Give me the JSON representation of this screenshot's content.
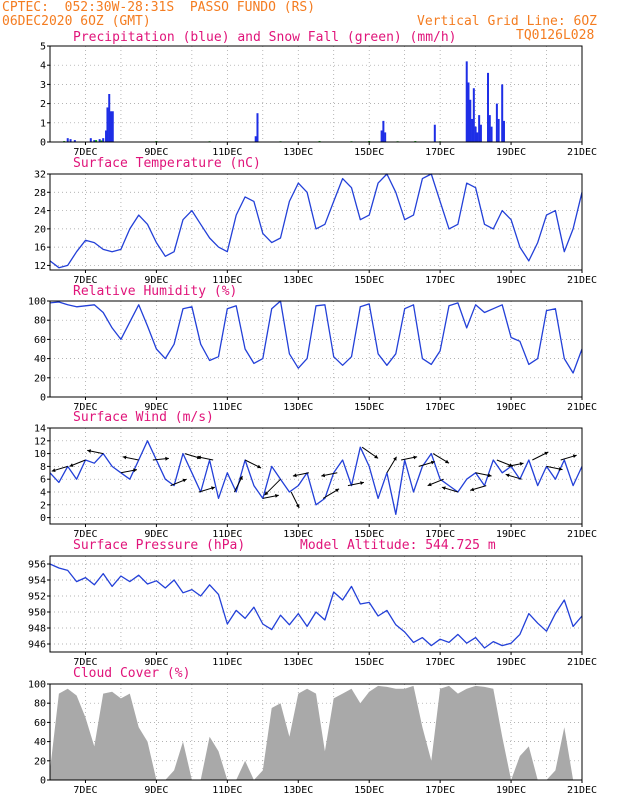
{
  "header": {
    "line1": "CPTEC:  052:30W-28:31S  PASSO FUNDO (RS)",
    "line2_left": "06DEC2020 6OZ (GMT)",
    "line2_right": "Vertical Grid Line: 6OZ",
    "line3_right": "TQ0126L028"
  },
  "colors": {
    "header": "#f47c20",
    "panel_title": "#e0147a",
    "precip": "#1e2ee6",
    "snow": "#10a810",
    "line": "#2340d8",
    "cloud": "#a9a9a9",
    "wind_arrow": "#000000"
  },
  "chart_data": [
    {
      "id": "precip",
      "type": "bar",
      "title": "Precipitation (blue) and Snow Fall (green) (mm/h)",
      "x_tick_labels": [
        "7DEC",
        "9DEC",
        "11DEC",
        "13DEC",
        "15DEC",
        "17DEC",
        "19DEC",
        "21DEC"
      ],
      "ylim": [
        0,
        5
      ],
      "yticks": [
        0,
        1,
        2,
        3,
        4,
        5
      ],
      "grid": true,
      "series": [
        {
          "color": "precip",
          "points": [
            [
              6.5,
              0.2
            ],
            [
              6.58,
              0.15
            ],
            [
              6.7,
              0.1
            ],
            [
              7.15,
              0.2
            ],
            [
              7.25,
              0.1
            ],
            [
              7.4,
              0.15
            ],
            [
              7.5,
              0.2
            ],
            [
              7.58,
              0.6
            ],
            [
              7.62,
              1.8
            ],
            [
              7.67,
              2.5
            ],
            [
              7.72,
              1.6
            ],
            [
              7.77,
              1.6
            ],
            [
              11.8,
              0.3
            ],
            [
              11.85,
              1.5
            ],
            [
              15.35,
              0.6
            ],
            [
              15.4,
              1.1
            ],
            [
              15.45,
              0.5
            ],
            [
              16.85,
              0.9
            ],
            [
              17.75,
              4.2
            ],
            [
              17.8,
              3.1
            ],
            [
              17.85,
              2.2
            ],
            [
              17.9,
              1.2
            ],
            [
              17.95,
              2.8
            ],
            [
              18.0,
              0.8
            ],
            [
              18.05,
              0.5
            ],
            [
              18.1,
              1.4
            ],
            [
              18.15,
              0.9
            ],
            [
              18.35,
              3.6
            ],
            [
              18.4,
              1.4
            ],
            [
              18.45,
              0.8
            ],
            [
              18.6,
              2.0
            ],
            [
              18.65,
              1.2
            ],
            [
              18.75,
              3.0
            ],
            [
              18.8,
              1.1
            ]
          ]
        },
        {
          "color": "snow",
          "points": [
            [
              6.4,
              0.05
            ],
            [
              7.3,
              0.1
            ],
            [
              7.45,
              0.08
            ],
            [
              9.0,
              0.05
            ],
            [
              10.5,
              0.04
            ],
            [
              12.5,
              0.04
            ],
            [
              13.6,
              0.05
            ],
            [
              14.5,
              0.04
            ],
            [
              15.0,
              0.05
            ],
            [
              15.8,
              0.04
            ],
            [
              16.3,
              0.05
            ],
            [
              17.0,
              0.04
            ]
          ]
        }
      ]
    },
    {
      "id": "temp",
      "type": "line",
      "title": "Surface Temperature (nC)",
      "x_tick_labels": [
        "7DEC",
        "9DEC",
        "11DEC",
        "13DEC",
        "15DEC",
        "17DEC",
        "19DEC",
        "21DEC"
      ],
      "ylim": [
        11,
        32
      ],
      "yticks": [
        12,
        16,
        20,
        24,
        28,
        32
      ],
      "grid": true,
      "x": [
        6.0,
        6.25,
        6.5,
        6.75,
        7.0,
        7.25,
        7.5,
        7.75,
        8.0,
        8.25,
        8.5,
        8.75,
        9.0,
        9.25,
        9.5,
        9.75,
        10.0,
        10.25,
        10.5,
        10.75,
        11.0,
        11.25,
        11.5,
        11.75,
        12.0,
        12.25,
        12.5,
        12.75,
        13.0,
        13.25,
        13.5,
        13.75,
        14.0,
        14.25,
        14.5,
        14.75,
        15.0,
        15.25,
        15.5,
        15.75,
        16.0,
        16.25,
        16.5,
        16.75,
        17.0,
        17.25,
        17.5,
        17.75,
        18.0,
        18.25,
        18.5,
        18.75,
        19.0,
        19.25,
        19.5,
        19.75,
        20.0,
        20.25,
        20.5,
        20.75,
        21.0
      ],
      "values": [
        13,
        11.5,
        12,
        15,
        17.5,
        17,
        15.5,
        15,
        15.5,
        20,
        23,
        21,
        17,
        14,
        15,
        22,
        24,
        21,
        18,
        16,
        15,
        23,
        27,
        26,
        19,
        17,
        18,
        26,
        30,
        28,
        20,
        21,
        26,
        31,
        29,
        22,
        23,
        30,
        32,
        28,
        22,
        23,
        31,
        32,
        26,
        20,
        21,
        30,
        29,
        21,
        20,
        24,
        22,
        16,
        13,
        17,
        23,
        24,
        15,
        20,
        28
      ]
    },
    {
      "id": "rh",
      "type": "line",
      "title": "Relative Humidity (%)",
      "x_tick_labels": [
        "7DEC",
        "9DEC",
        "11DEC",
        "13DEC",
        "15DEC",
        "17DEC",
        "19DEC",
        "21DEC"
      ],
      "ylim": [
        0,
        100
      ],
      "yticks": [
        0,
        20,
        40,
        60,
        80,
        100
      ],
      "grid": true,
      "x": [
        6.0,
        6.25,
        6.5,
        6.75,
        7.0,
        7.25,
        7.5,
        7.75,
        8.0,
        8.25,
        8.5,
        8.75,
        9.0,
        9.25,
        9.5,
        9.75,
        10.0,
        10.25,
        10.5,
        10.75,
        11.0,
        11.25,
        11.5,
        11.75,
        12.0,
        12.25,
        12.5,
        12.75,
        13.0,
        13.25,
        13.5,
        13.75,
        14.0,
        14.25,
        14.5,
        14.75,
        15.0,
        15.25,
        15.5,
        15.75,
        16.0,
        16.25,
        16.5,
        16.75,
        17.0,
        17.25,
        17.5,
        17.75,
        18.0,
        18.25,
        18.5,
        18.75,
        19.0,
        19.25,
        19.5,
        19.75,
        20.0,
        20.25,
        20.5,
        20.75,
        21.0
      ],
      "values": [
        98,
        99,
        96,
        94,
        95,
        96,
        88,
        72,
        60,
        78,
        96,
        74,
        50,
        40,
        55,
        92,
        94,
        55,
        38,
        42,
        92,
        95,
        50,
        35,
        40,
        92,
        100,
        45,
        30,
        40,
        95,
        96,
        42,
        33,
        42,
        94,
        97,
        45,
        33,
        45,
        92,
        96,
        40,
        34,
        48,
        95,
        98,
        72,
        96,
        88,
        92,
        96,
        62,
        58,
        34,
        40,
        90,
        92,
        40,
        25,
        50
      ]
    },
    {
      "id": "wind",
      "type": "line",
      "title": "Surface Wind (m/s)",
      "x_tick_labels": [
        "7DEC",
        "9DEC",
        "11DEC",
        "13DEC",
        "15DEC",
        "17DEC",
        "19DEC",
        "21DEC"
      ],
      "ylim": [
        -1,
        14
      ],
      "yticks": [
        0,
        2,
        4,
        6,
        8,
        10,
        12,
        14
      ],
      "grid": true,
      "x": [
        6.0,
        6.25,
        6.5,
        6.75,
        7.0,
        7.25,
        7.5,
        7.75,
        8.0,
        8.25,
        8.5,
        8.75,
        9.0,
        9.25,
        9.5,
        9.75,
        10.0,
        10.25,
        10.5,
        10.75,
        11.0,
        11.25,
        11.5,
        11.75,
        12.0,
        12.25,
        12.5,
        12.75,
        13.0,
        13.25,
        13.5,
        13.75,
        14.0,
        14.25,
        14.5,
        14.75,
        15.0,
        15.25,
        15.5,
        15.75,
        16.0,
        16.25,
        16.5,
        16.75,
        17.0,
        17.25,
        17.5,
        17.75,
        18.0,
        18.25,
        18.5,
        18.75,
        19.0,
        19.25,
        19.5,
        19.75,
        20.0,
        20.25,
        20.5,
        20.75,
        21.0
      ],
      "values": [
        7,
        5.5,
        8,
        6,
        9,
        8.5,
        10,
        8,
        7,
        6,
        9,
        12,
        9,
        6,
        5,
        10,
        7,
        4,
        9,
        3,
        7,
        4,
        9,
        5,
        3,
        8,
        6,
        4,
        5,
        7,
        2,
        3,
        7,
        9,
        5,
        11,
        8,
        3,
        7,
        0.5,
        9,
        4,
        8,
        10,
        6,
        5,
        4,
        6,
        7,
        5,
        9,
        7,
        8,
        6,
        9,
        5,
        8,
        6,
        9,
        5,
        8
      ],
      "arrows_comment": "wind vectors: [x, dx_factor, dy_factor] in data units (direction shown only)",
      "arrows": [
        [
          6.5,
          -1,
          -0.3
        ],
        [
          7.0,
          -1,
          -0.4
        ],
        [
          7.5,
          -1,
          0.2
        ],
        [
          8.0,
          1,
          0.2
        ],
        [
          8.5,
          -1,
          0.2
        ],
        [
          8.9,
          1,
          0.1
        ],
        [
          9.4,
          1,
          0.4
        ],
        [
          9.8,
          1,
          -0.3
        ],
        [
          10.2,
          1,
          0.3
        ],
        [
          10.6,
          -1,
          0.2
        ],
        [
          11.2,
          0.5,
          1
        ],
        [
          11.5,
          1,
          -0.5
        ],
        [
          12.0,
          1,
          0.2
        ],
        [
          12.5,
          -1,
          -1
        ],
        [
          12.8,
          0.5,
          -1
        ],
        [
          13.3,
          -1,
          -0.2
        ],
        [
          13.7,
          1,
          0.6
        ],
        [
          14.1,
          -1,
          -0.2
        ],
        [
          14.4,
          1,
          0.2
        ],
        [
          14.8,
          1,
          -0.7
        ],
        [
          15.5,
          0.6,
          1
        ],
        [
          15.9,
          1,
          0.2
        ],
        [
          16.4,
          1,
          0.3
        ],
        [
          16.8,
          1,
          -0.6
        ],
        [
          17.1,
          -1,
          -0.4
        ],
        [
          17.5,
          -1,
          0.3
        ],
        [
          18.0,
          1,
          -0.2
        ],
        [
          18.3,
          -1,
          -0.3
        ],
        [
          18.6,
          1,
          -0.4
        ],
        [
          18.9,
          1,
          0.2
        ],
        [
          19.3,
          -1,
          0.3
        ],
        [
          19.6,
          1,
          0.5
        ],
        [
          20.0,
          1,
          -0.2
        ],
        [
          20.4,
          1,
          0.3
        ]
      ]
    },
    {
      "id": "pres",
      "type": "line",
      "title": "Surface Pressure (hPa)",
      "subtitle": "Model Altitude: 544.725 m",
      "x_tick_labels": [
        "7DEC",
        "9DEC",
        "11DEC",
        "13DEC",
        "15DEC",
        "17DEC",
        "19DEC",
        "21DEC"
      ],
      "ylim": [
        945,
        957
      ],
      "yticks": [
        946,
        948,
        950,
        952,
        954,
        956
      ],
      "grid": true,
      "x": [
        6.0,
        6.25,
        6.5,
        6.75,
        7.0,
        7.25,
        7.5,
        7.75,
        8.0,
        8.25,
        8.5,
        8.75,
        9.0,
        9.25,
        9.5,
        9.75,
        10.0,
        10.25,
        10.5,
        10.75,
        11.0,
        11.25,
        11.5,
        11.75,
        12.0,
        12.25,
        12.5,
        12.75,
        13.0,
        13.25,
        13.5,
        13.75,
        14.0,
        14.25,
        14.5,
        14.75,
        15.0,
        15.25,
        15.5,
        15.75,
        16.0,
        16.25,
        16.5,
        16.75,
        17.0,
        17.25,
        17.5,
        17.75,
        18.0,
        18.25,
        18.5,
        18.75,
        19.0,
        19.25,
        19.5,
        19.75,
        20.0,
        20.25,
        20.5,
        20.75,
        21.0
      ],
      "values": [
        956,
        955.5,
        955.2,
        953.8,
        954.3,
        953.4,
        954.8,
        953.2,
        954.5,
        953.8,
        954.6,
        953.5,
        953.9,
        953,
        954,
        952.4,
        952.8,
        952,
        953.4,
        952.2,
        948.5,
        950.2,
        949.2,
        950.6,
        948.5,
        947.8,
        949.6,
        948.4,
        949.8,
        948.2,
        950,
        949,
        952.5,
        951.5,
        953.2,
        951,
        951.2,
        949.5,
        950.2,
        948.4,
        947.5,
        946.2,
        946.8,
        945.8,
        946.6,
        946.2,
        947.2,
        946.1,
        946.8,
        945.5,
        946.3,
        945.8,
        946.1,
        947.2,
        949.8,
        948.6,
        947.6,
        949.8,
        951.5,
        948.2,
        949.5
      ]
    },
    {
      "id": "cloud",
      "type": "area",
      "title": "Cloud Cover (%)",
      "x_tick_labels": [
        "7DEC",
        "9DEC",
        "11DEC",
        "13DEC",
        "15DEC",
        "17DEC",
        "19DEC",
        "21DEC"
      ],
      "ylim": [
        0,
        100
      ],
      "yticks": [
        0,
        20,
        40,
        60,
        80,
        100
      ],
      "grid": true,
      "x": [
        6.0,
        6.25,
        6.5,
        6.75,
        7.0,
        7.25,
        7.5,
        7.75,
        8.0,
        8.25,
        8.5,
        8.75,
        9.0,
        9.25,
        9.5,
        9.75,
        10.0,
        10.25,
        10.5,
        10.75,
        11.0,
        11.25,
        11.5,
        11.75,
        12.0,
        12.25,
        12.5,
        12.75,
        13.0,
        13.25,
        13.5,
        13.75,
        14.0,
        14.25,
        14.5,
        14.75,
        15.0,
        15.25,
        15.5,
        15.75,
        16.0,
        16.25,
        16.5,
        16.75,
        17.0,
        17.25,
        17.5,
        17.75,
        18.0,
        18.25,
        18.5,
        18.75,
        19.0,
        19.25,
        19.5,
        19.75,
        20.0,
        20.25,
        20.5,
        20.75,
        21.0
      ],
      "values": [
        10,
        90,
        95,
        88,
        65,
        35,
        90,
        92,
        85,
        90,
        55,
        40,
        0,
        0,
        10,
        40,
        0,
        0,
        45,
        30,
        0,
        0,
        20,
        0,
        10,
        75,
        80,
        45,
        90,
        95,
        90,
        30,
        85,
        90,
        95,
        80,
        92,
        98,
        97,
        95,
        95,
        98,
        55,
        20,
        95,
        98,
        90,
        95,
        98,
        97,
        95,
        45,
        0,
        25,
        35,
        0,
        0,
        10,
        55,
        0,
        0
      ]
    }
  ]
}
